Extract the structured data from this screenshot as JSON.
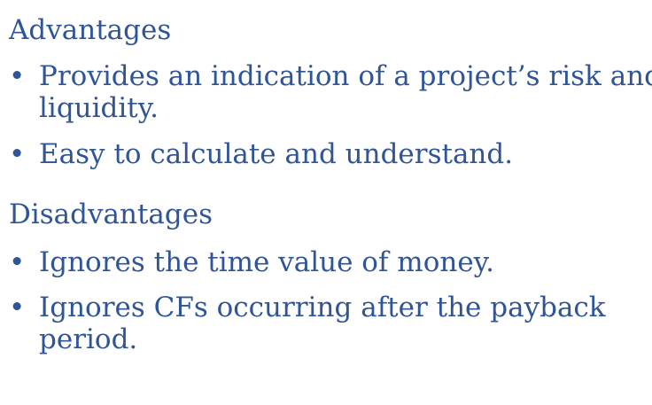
{
  "advantages": {
    "heading": "Advantages",
    "items": [
      {
        "bullet": "•",
        "line1": "Provides an indication of a project’s risk and",
        "line2": "liquidity."
      },
      {
        "bullet": "•",
        "line1": "Easy to calculate and understand."
      }
    ]
  },
  "disadvantages": {
    "heading": "Disadvantages",
    "items": [
      {
        "bullet": "•",
        "line1": "Ignores the time value of money."
      },
      {
        "bullet": "•",
        "line1": "Ignores CFs occurring after the payback",
        "line2": "period."
      }
    ]
  },
  "colors": {
    "text": "#2f5597",
    "background": "#ffffff"
  }
}
